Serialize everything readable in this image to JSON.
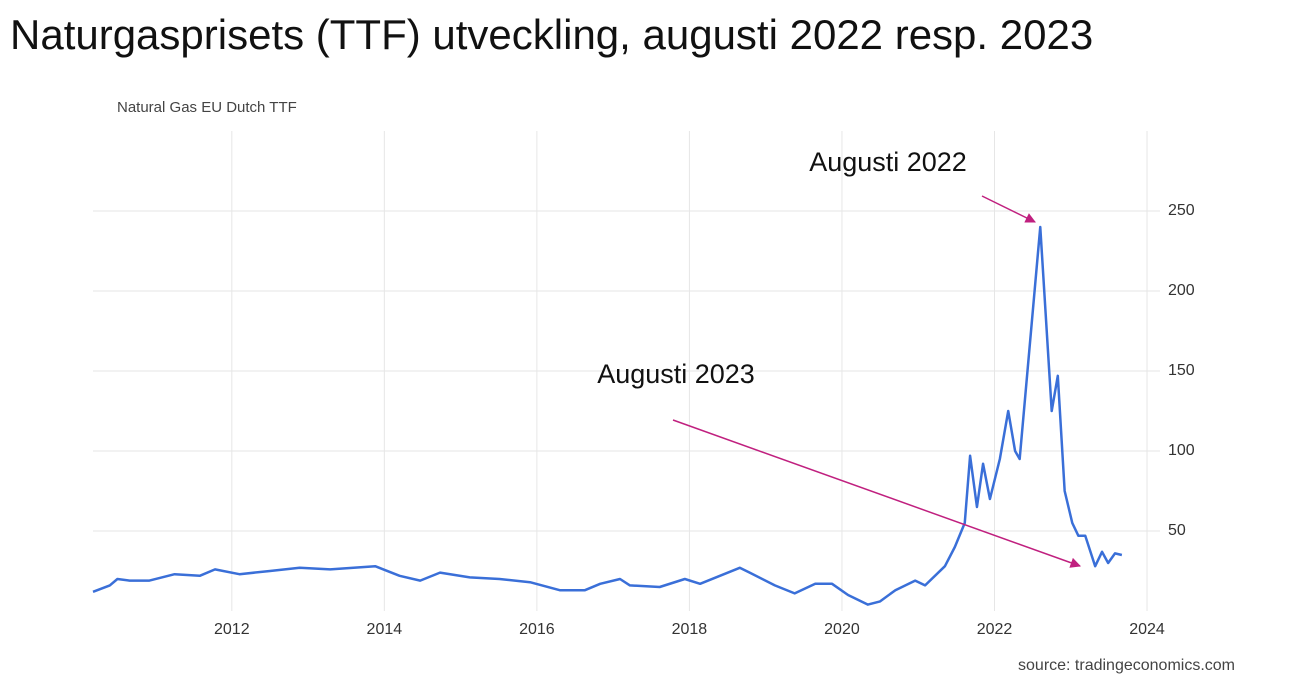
{
  "chart_data": {
    "type": "line",
    "title": "Naturgasprisets (TTF) utveckling, augusti 2022 resp. 2023",
    "subtitle": "Natural Gas EU Dutch TTF",
    "source": "source: tradingeconomics.com",
    "annotations": [
      "Augusti 2022",
      "Augusti 2023"
    ],
    "xlim": [
      2010.18,
      2024.17
    ],
    "xticks": [
      2012,
      2014,
      2016,
      2018,
      2020,
      2022,
      2024
    ],
    "ylim": [
      0,
      300
    ],
    "yticks": [
      50,
      100,
      150,
      200,
      250
    ],
    "grid": true,
    "series": [
      {
        "color": "#3a6fd8",
        "x": [
          2010.18,
          2010.4,
          2010.5,
          2010.66,
          2010.92,
          2011.25,
          2011.58,
          2011.78,
          2012.1,
          2012.5,
          2012.89,
          2013.29,
          2013.88,
          2014.2,
          2014.47,
          2014.73,
          2015.12,
          2015.51,
          2015.91,
          2016.3,
          2016.63,
          2016.83,
          2017.09,
          2017.22,
          2017.61,
          2017.94,
          2018.14,
          2018.4,
          2018.66,
          2018.79,
          2019.12,
          2019.38,
          2019.65,
          2019.87,
          2020.08,
          2020.34,
          2020.5,
          2020.7,
          2020.96,
          2021.09,
          2021.35,
          2021.48,
          2021.61,
          2021.68,
          2021.77,
          2021.85,
          2021.94,
          2022.07,
          2022.18,
          2022.27,
          2022.33,
          2022.6,
          2022.75,
          2022.83,
          2022.92,
          2023.02,
          2023.1,
          2023.19,
          2023.32,
          2023.41,
          2023.49,
          2023.58,
          2023.67
        ],
        "values": [
          12,
          16,
          20,
          19,
          19,
          23,
          22,
          26,
          23,
          25,
          27,
          26,
          28,
          22,
          19,
          24,
          21,
          20,
          18,
          13,
          13,
          17,
          20,
          16,
          15,
          20,
          17,
          22,
          27,
          24,
          16,
          11,
          17,
          17,
          10,
          4,
          6,
          13,
          19,
          16,
          28,
          40,
          55,
          97,
          65,
          92,
          70,
          95,
          125,
          100,
          95,
          240,
          125,
          147,
          75,
          55,
          47,
          47,
          28,
          37,
          30,
          36,
          35
        ]
      }
    ]
  }
}
